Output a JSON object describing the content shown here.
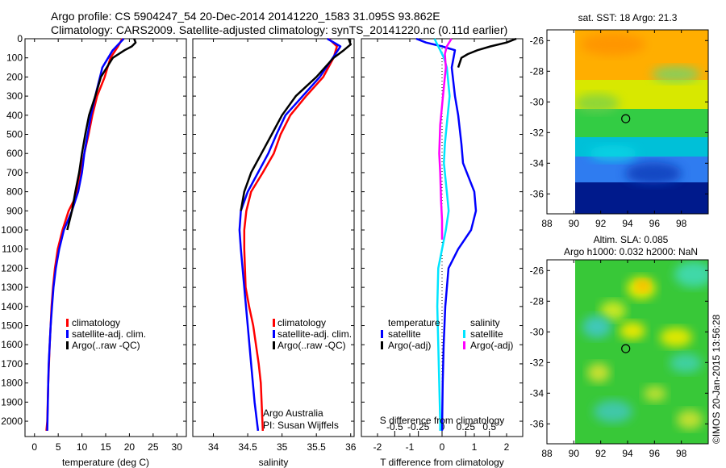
{
  "header": {
    "title_line1": "Argo profile: CS 5904247_54 20-Dec-2014 20141220_1583 31.095S 93.862E",
    "title_line2": "Climatology: CARS2009. Satellite-adjusted climatology: synTS_20141220.nc (0.11d earlier)"
  },
  "colors": {
    "climatology": "#ff0000",
    "satellite": "#0000ff",
    "argo": "#000000",
    "satellite_s": "#00e5ff",
    "argo_s": "#ff00ff"
  },
  "chart_data": [
    {
      "id": "temperature",
      "type": "line",
      "xlabel": "temperature (deg C)",
      "xlim": [
        -2,
        32
      ],
      "xticks": [
        0,
        5,
        10,
        15,
        20,
        25,
        30
      ],
      "ylim": [
        2080,
        0
      ],
      "yticks": [
        0,
        100,
        200,
        300,
        400,
        500,
        600,
        700,
        800,
        900,
        1000,
        1100,
        1200,
        1300,
        1400,
        1500,
        1600,
        1700,
        1800,
        1900,
        2000
      ],
      "legend": [
        "climatology",
        "satellite-adj. clim.",
        "Argo(..raw -QC)"
      ],
      "series": [
        {
          "name": "climatology",
          "color": "#ff0000",
          "x": [
            18.5,
            17.6,
            16.0,
            14.8,
            13.2,
            12.2,
            11.4,
            10.5,
            9.7,
            9.0,
            8.2,
            7.2,
            5.9,
            4.9,
            4.3,
            3.9,
            3.6,
            3.4,
            3.2,
            2.9,
            2.7,
            2.5
          ],
          "y": [
            0,
            40,
            100,
            200,
            300,
            400,
            500,
            600,
            700,
            800,
            850,
            900,
            1000,
            1100,
            1200,
            1300,
            1400,
            1500,
            1600,
            1800,
            2000,
            2050
          ]
        },
        {
          "name": "satellite-adj. clim.",
          "color": "#0000ff",
          "x": [
            18.8,
            16.5,
            14.3,
            12.8,
            11.9,
            11.2,
            10.5,
            10.0,
            9.2,
            7.9,
            6.2,
            5.2,
            4.5,
            4.0,
            3.7,
            3.4,
            3.2,
            3.0,
            2.9,
            2.7
          ],
          "y": [
            0,
            60,
            150,
            300,
            400,
            500,
            600,
            700,
            800,
            900,
            1000,
            1100,
            1200,
            1300,
            1400,
            1500,
            1600,
            1700,
            1800,
            2050
          ]
        },
        {
          "name": "Argo(..raw -QC)",
          "color": "#000000",
          "x": [
            21.0,
            21.3,
            20.5,
            19.0,
            16.5,
            14.0,
            12.8,
            11.5,
            10.7,
            10.0,
            9.4,
            8.6,
            7.9,
            6.9
          ],
          "y": [
            0,
            20,
            40,
            60,
            100,
            200,
            300,
            400,
            500,
            600,
            700,
            800,
            900,
            1000
          ]
        }
      ]
    },
    {
      "id": "salinity",
      "type": "line",
      "xlabel": "salinity",
      "xlim": [
        33.7,
        36.05
      ],
      "xticks": [
        34,
        34.5,
        35,
        35.5,
        36
      ],
      "xticklabels": [
        "34",
        "34.5",
        "35",
        "35.5",
        "36"
      ],
      "ylim": [
        2080,
        0
      ],
      "legend": [
        "climatology",
        "satellite-adj. clim.",
        "Argo(..raw -QC)"
      ],
      "annotation": [
        "Argo Australia",
        "PI: Susan Wijffels"
      ],
      "series": [
        {
          "name": "climatology",
          "color": "#ff0000",
          "x": [
            35.68,
            35.8,
            35.75,
            35.6,
            35.35,
            35.12,
            34.98,
            34.88,
            34.72,
            34.55,
            34.48,
            34.45,
            34.45,
            34.47,
            34.52,
            34.58,
            34.62,
            34.66,
            34.69,
            34.72
          ],
          "y": [
            0,
            40,
            100,
            200,
            300,
            400,
            500,
            600,
            700,
            800,
            900,
            1000,
            1100,
            1300,
            1400,
            1500,
            1600,
            1700,
            1800,
            2050
          ]
        },
        {
          "name": "satellite-adj. clim.",
          "color": "#0000ff",
          "x": [
            35.66,
            35.85,
            35.74,
            35.55,
            35.3,
            35.05,
            34.92,
            34.8,
            34.65,
            34.5,
            34.4,
            34.38,
            34.4,
            34.45,
            34.5,
            34.55,
            34.6,
            34.65
          ],
          "y": [
            0,
            40,
            100,
            200,
            300,
            400,
            500,
            600,
            700,
            800,
            900,
            1000,
            1100,
            1300,
            1500,
            1700,
            1900,
            2050
          ]
        },
        {
          "name": "Argo(..raw -QC)",
          "color": "#000000",
          "x": [
            35.97,
            36.0,
            35.9,
            35.75,
            35.5,
            35.2,
            35.0,
            34.85,
            34.7,
            34.55,
            34.45,
            34.4
          ],
          "y": [
            0,
            30,
            60,
            100,
            200,
            300,
            400,
            500,
            600,
            700,
            800,
            900
          ]
        }
      ]
    },
    {
      "id": "difference",
      "type": "line",
      "xlabel": "T difference from climatology",
      "xlabel_top": "S difference from climatology",
      "xlim": [
        -2.5,
        2.5
      ],
      "xticks": [
        -2,
        -1,
        0,
        1,
        2
      ],
      "xticks_top": [
        -0.5,
        -0.25,
        0,
        0.25,
        0.5
      ],
      "xticklabels_top": [
        "-0.5",
        "-0.25",
        "0",
        "0.25",
        "0.5"
      ],
      "ylim": [
        2080,
        0
      ],
      "legend_temperature": {
        "title": "temperature",
        "items": [
          "satellite",
          "Argo(-adj)"
        ]
      },
      "legend_salinity": {
        "title": "salinity",
        "items": [
          "satellite",
          "Argo(-adj)"
        ]
      },
      "series": [
        {
          "name": "temperature satellite",
          "color": "#0000ff",
          "x": [
            -0.8,
            -0.5,
            0.0,
            0.4,
            0.3,
            0.4,
            0.5,
            0.6,
            0.65,
            1.0,
            1.05,
            0.9,
            0.5,
            0.2,
            0.1,
            0.05,
            0.02,
            0.0
          ],
          "y": [
            0,
            20,
            40,
            60,
            150,
            300,
            400,
            550,
            650,
            800,
            900,
            1000,
            1100,
            1200,
            1400,
            1600,
            1800,
            2050
          ]
        },
        {
          "name": "temperature Argo(-adj)",
          "color": "#000000",
          "x": [
            2.3,
            2.0,
            1.5,
            1.1,
            0.8,
            0.6,
            0.5
          ],
          "y": [
            0,
            20,
            40,
            60,
            80,
            100,
            150
          ]
        },
        {
          "name": "salinity satellite",
          "color": "#00e5ff",
          "x": [
            -0.08,
            -0.04,
            -0.02,
            0.02,
            0.05,
            0.08,
            0.06,
            0.03,
            0.02,
            0.05,
            0.07,
            0.04,
            0.0,
            -0.04,
            -0.05,
            -0.04,
            -0.03,
            -0.02,
            -0.02
          ],
          "y": [
            0,
            40,
            60,
            100,
            150,
            300,
            400,
            550,
            650,
            800,
            900,
            1000,
            1100,
            1200,
            1400,
            1600,
            1800,
            2000,
            2050
          ]
        },
        {
          "name": "salinity Argo(-adj)",
          "color": "#ff00ff",
          "x": [
            0.1,
            0.05,
            0.03,
            0.04,
            0.02,
            0.0,
            -0.02,
            -0.03,
            -0.02,
            -0.01,
            0.0,
            0.0
          ],
          "y": [
            0,
            40,
            80,
            150,
            250,
            350,
            450,
            600,
            700,
            850,
            950,
            1050
          ]
        }
      ]
    }
  ],
  "maps": [
    {
      "id": "sst-map",
      "title": "sat. SST: 18 Argo: 21.3",
      "xticks": [
        88,
        90,
        92,
        94,
        96,
        98
      ],
      "yticks": [
        -26,
        -28,
        -30,
        -32,
        -34,
        -36
      ],
      "xlim": [
        88,
        100
      ],
      "ylim": [
        -37.3,
        -25.3
      ],
      "float": {
        "lon": 93.862,
        "lat": -31.095
      }
    },
    {
      "id": "sla-map",
      "title_line1": "Altim. SLA: 0.085",
      "title_line2": "Argo h1000: 0.032 h2000: NaN",
      "xticks": [
        88,
        90,
        92,
        94,
        96,
        98
      ],
      "yticks": [
        -26,
        -28,
        -30,
        -32,
        -34,
        -36
      ],
      "xlim": [
        88,
        100
      ],
      "ylim": [
        -37.3,
        -25.3
      ],
      "float": {
        "lon": 93.862,
        "lat": -31.095
      }
    }
  ],
  "footer": {
    "credit": "©IMOS 20-Jan-2015 13:56:28"
  }
}
